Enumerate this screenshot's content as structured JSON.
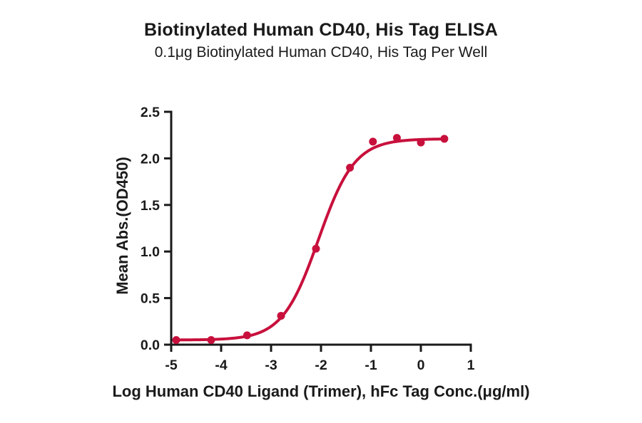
{
  "chart_data": {
    "type": "scatter",
    "title": "Biotinylated Human CD40, His Tag ELISA",
    "subtitle": "0.1μg Biotinylated Human CD40, His Tag Per Well",
    "xlabel": "Log Human CD40 Ligand (Trimer), hFc Tag Conc.(μg/ml)",
    "ylabel": "Mean Abs.(OD450)",
    "xlim": [
      -5,
      1
    ],
    "ylim": [
      0,
      2.5
    ],
    "grid": false,
    "legend": "none",
    "x_ticks": [
      {
        "value": -5,
        "label": "-5"
      },
      {
        "value": -4,
        "label": "-4"
      },
      {
        "value": -3,
        "label": "-3"
      },
      {
        "value": -2,
        "label": "-2"
      },
      {
        "value": -1,
        "label": "-1"
      },
      {
        "value": 0,
        "label": "0"
      },
      {
        "value": 1,
        "label": "1"
      }
    ],
    "y_ticks": [
      {
        "value": 0.0,
        "label": "0.0"
      },
      {
        "value": 0.5,
        "label": "0.5"
      },
      {
        "value": 1.0,
        "label": "1.0"
      },
      {
        "value": 1.5,
        "label": "1.5"
      },
      {
        "value": 2.0,
        "label": "2.0"
      },
      {
        "value": 2.5,
        "label": "2.5"
      }
    ],
    "points": [
      {
        "x": -4.9,
        "y": 0.05
      },
      {
        "x": -4.2,
        "y": 0.05
      },
      {
        "x": -3.48,
        "y": 0.1
      },
      {
        "x": -2.8,
        "y": 0.31
      },
      {
        "x": -2.1,
        "y": 1.03
      },
      {
        "x": -1.42,
        "y": 1.9
      },
      {
        "x": -0.96,
        "y": 2.18
      },
      {
        "x": -0.48,
        "y": 2.22
      },
      {
        "x": 0.0,
        "y": 2.17
      },
      {
        "x": 0.47,
        "y": 2.21
      }
    ],
    "fit_curve": {
      "model": "4PL",
      "bottom": 0.05,
      "top": 2.21,
      "logEC50": -2.05,
      "hill": 1.2,
      "x_start": -4.95,
      "x_end": 0.52
    },
    "colors": {
      "series": "#C8103C",
      "axis": "#1a1a1a",
      "text": "#1a1a1a"
    },
    "point_radius": 5.5,
    "curve_width": 4
  }
}
